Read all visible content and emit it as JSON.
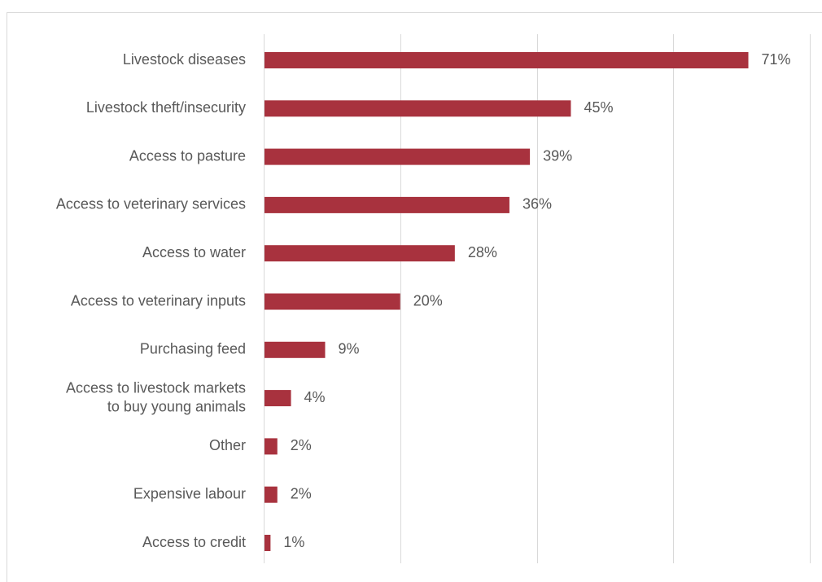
{
  "chart_data": {
    "type": "bar",
    "orientation": "horizontal",
    "categories": [
      [
        "Livestock diseases"
      ],
      [
        "Livestock theft/insecurity"
      ],
      [
        "Access to pasture"
      ],
      [
        "Access to veterinary services"
      ],
      [
        "Access to water"
      ],
      [
        "Access to veterinary inputs"
      ],
      [
        "Purchasing feed"
      ],
      [
        "Access to livestock markets",
        "to buy young animals"
      ],
      [
        "Other"
      ],
      [
        "Expensive labour"
      ],
      [
        "Access to credit"
      ]
    ],
    "values": [
      71,
      45,
      39,
      36,
      28,
      20,
      9,
      4,
      2,
      2,
      1
    ],
    "value_labels": [
      "71%",
      "45%",
      "39%",
      "36%",
      "28%",
      "20%",
      "9%",
      "4%",
      "2%",
      "2%",
      "1%"
    ],
    "title": "",
    "xlabel": "",
    "ylabel": "",
    "xlim": [
      0,
      80
    ],
    "gridlines": [
      0,
      20,
      40,
      60,
      80
    ],
    "grid": true,
    "legend": "none",
    "bar_color": "#a8323e",
    "grid_color": "#d9d9d9",
    "text_color": "#595959",
    "border_color": "#d9d9d9"
  }
}
